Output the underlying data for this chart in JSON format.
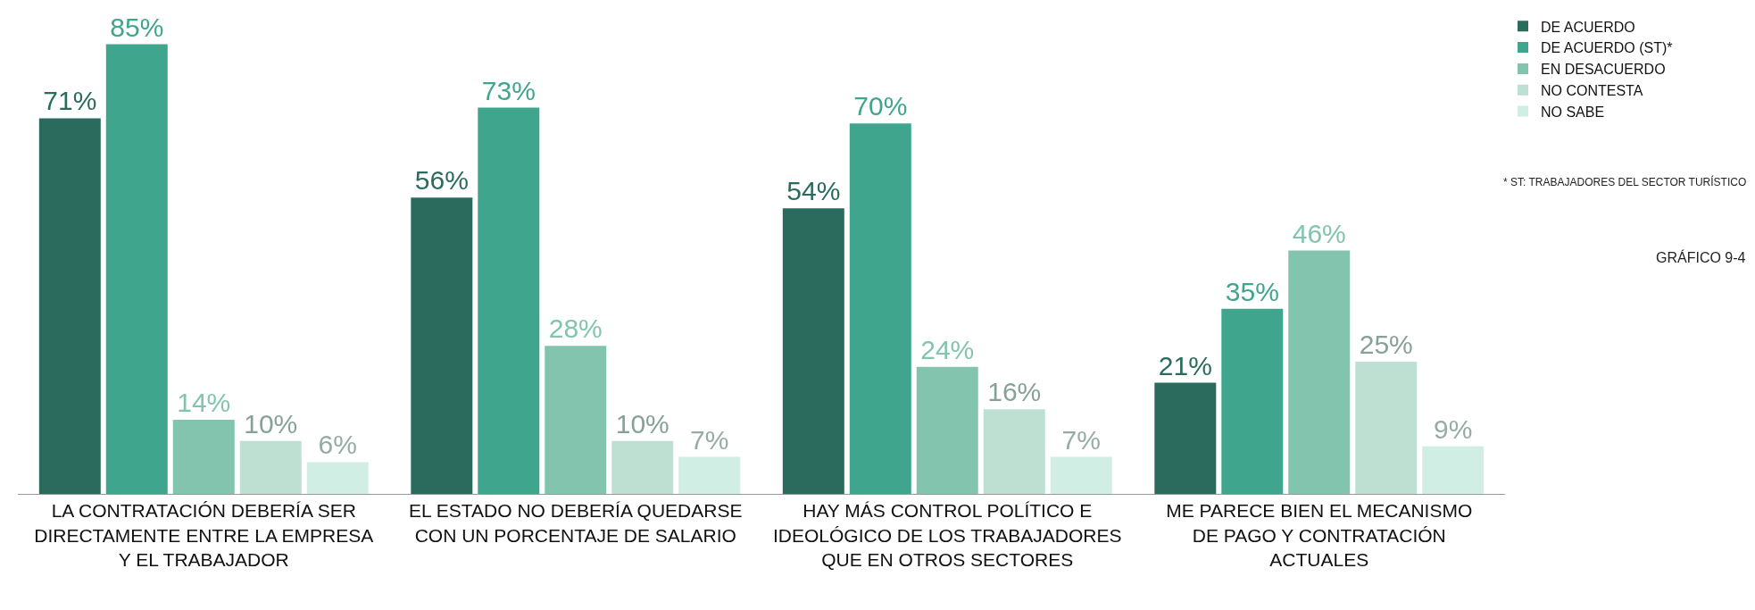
{
  "chart_data": {
    "type": "bar",
    "categories": [
      "LA CONTRATACIÓN DEBERÍA SER\nDIRECTAMENTE ENTRE LA EMPRESA\nY EL TRABAJADOR",
      "EL ESTADO NO DEBERÍA QUEDARSE\nCON UN PORCENTAJE DE SALARIO",
      "HAY MÁS CONTROL POLÍTICO E\nIDEOLÓGICO DE LOS TRABAJADORES\nQUE EN OTROS SECTORES",
      "ME PARECE BIEN EL MECANISMO\nDE PAGO Y CONTRATACIÓN\nACTUALES"
    ],
    "series": [
      {
        "name": "DE ACUERDO",
        "color": "#2a6b5e",
        "values": [
          71,
          56,
          54,
          21
        ],
        "value_labels": [
          "71%",
          "56%",
          "54%",
          "21%"
        ]
      },
      {
        "name": "DE ACUERDO (ST)*",
        "color": "#3fa58c",
        "values": [
          85,
          73,
          70,
          35
        ],
        "value_labels": [
          "85%",
          "73%",
          "70%",
          "35%"
        ]
      },
      {
        "name": "EN DESACUERDO",
        "color": "#82c4ae",
        "values": [
          14,
          28,
          24,
          46
        ],
        "value_labels": [
          "14%",
          "28%",
          "24%",
          "46%"
        ]
      },
      {
        "name": "NO CONTESTA",
        "color": "#bde0d3",
        "values": [
          10,
          10,
          16,
          25
        ],
        "value_labels": [
          "10%",
          "10%",
          "16%",
          "25%"
        ]
      },
      {
        "name": "NO SABE",
        "color": "#d0eee4",
        "values": [
          6,
          7,
          7,
          9
        ],
        "value_labels": [
          "6%",
          "7%",
          "7%",
          "9%"
        ]
      }
    ],
    "legend": "top right",
    "annotations": [
      "* ST: TRABAJADORES DEL SECTOR TURÍSTICO",
      "GRÁFICO 9-4"
    ]
  }
}
